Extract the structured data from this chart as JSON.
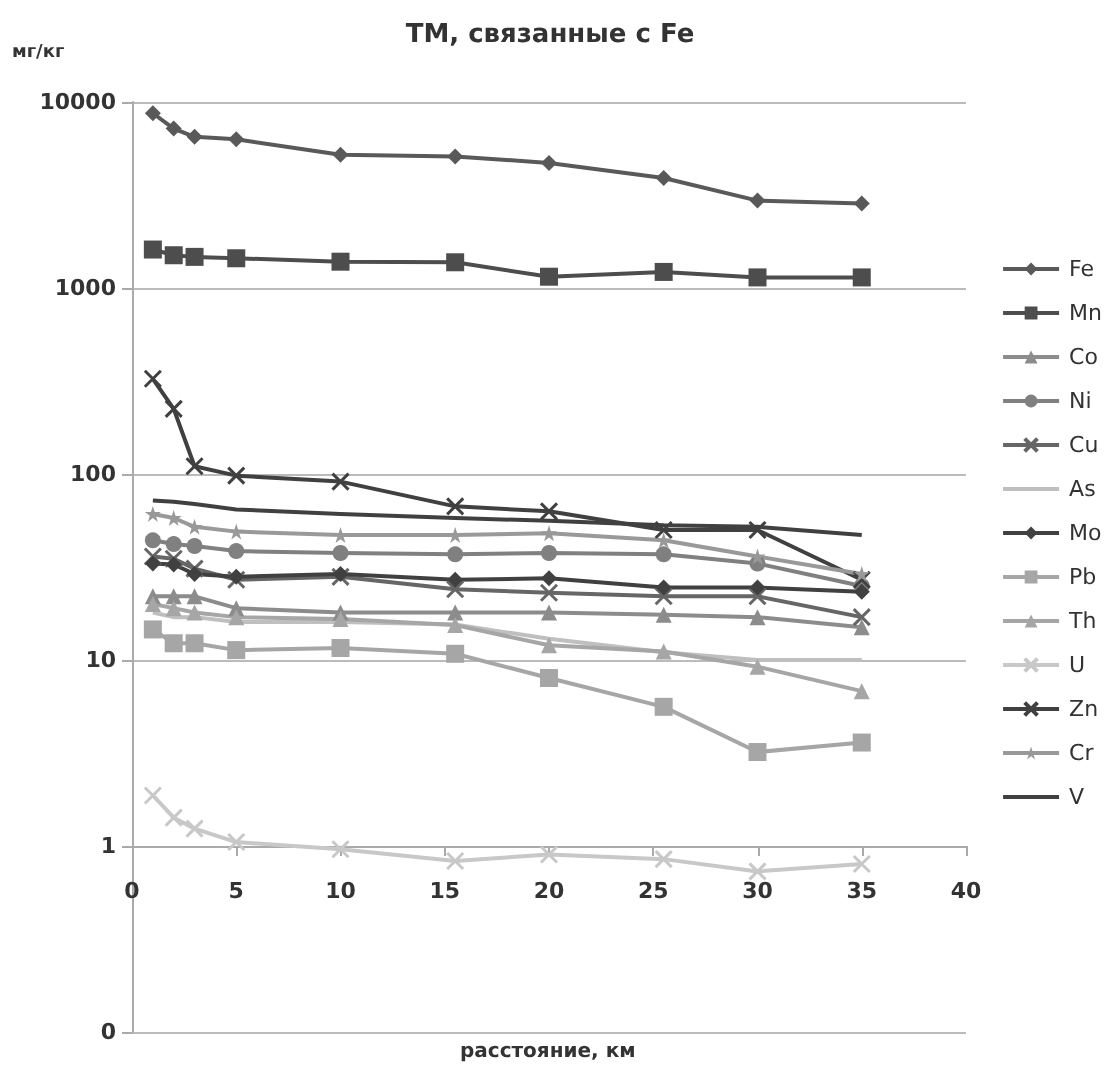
{
  "chart_data": {
    "type": "line",
    "title": "ТМ, связанные с Fe",
    "ylabel": "мг/кг",
    "xlabel": "расстояние, км",
    "x": [
      1,
      2,
      3,
      5,
      10,
      15.5,
      20,
      25.5,
      30,
      35
    ],
    "series": [
      {
        "name": "Fe",
        "color": "#595959",
        "marker": "diamond",
        "values": [
          8700,
          7200,
          6500,
          6300,
          5200,
          5100,
          4700,
          3900,
          2950,
          2850
        ]
      },
      {
        "name": "Mn",
        "color": "#4d4d4d",
        "marker": "square",
        "values": [
          1610,
          1500,
          1470,
          1445,
          1385,
          1375,
          1150,
          1220,
          1140,
          1140
        ]
      },
      {
        "name": "Co",
        "color": "#8c8c8c",
        "marker": "triangle",
        "values": [
          22,
          22,
          22,
          19,
          18,
          18,
          18,
          17.5,
          17,
          15
        ]
      },
      {
        "name": "Ni",
        "color": "#808080",
        "marker": "circle",
        "values": [
          44,
          42,
          41,
          38.5,
          37.6,
          37,
          37.6,
          37,
          33,
          25
        ]
      },
      {
        "name": "Cu",
        "color": "#666666",
        "marker": "cross",
        "values": [
          36,
          35,
          31,
          27,
          28,
          24,
          23,
          22,
          22,
          17
        ]
      },
      {
        "name": "As",
        "color": "#bfbfbf",
        "marker": "none",
        "values": [
          18,
          17,
          17,
          16,
          16,
          15.5,
          13,
          11,
          10,
          10
        ]
      },
      {
        "name": "Mo",
        "color": "#404040",
        "marker": "diamond",
        "values": [
          33,
          32.6,
          29,
          28,
          29,
          27,
          27.5,
          24.5,
          24.5,
          23.3
        ]
      },
      {
        "name": "Pb",
        "color": "#a6a6a6",
        "marker": "square",
        "values": [
          14.6,
          12.3,
          12.3,
          11.3,
          11.6,
          10.8,
          8,
          5.6,
          3.2,
          3.6
        ]
      },
      {
        "name": "Th",
        "color": "#a6a6a6",
        "marker": "triangle",
        "values": [
          20,
          19,
          18,
          17,
          16.6,
          15.4,
          12,
          11.1,
          9.2,
          6.8
        ]
      },
      {
        "name": "U",
        "color": "#c8c8c8",
        "marker": "cross",
        "values": [
          1.87,
          1.42,
          1.24,
          1.05,
          0.96,
          0.83,
          0.9,
          0.85,
          0.73,
          0.8
        ]
      },
      {
        "name": "Zn",
        "color": "#404040",
        "marker": "cross",
        "values": [
          325,
          224,
          110,
          98,
          91,
          67,
          63,
          50,
          50,
          27
        ]
      },
      {
        "name": "Cr",
        "color": "#999999",
        "marker": "star",
        "values": [
          61,
          58,
          52,
          49,
          47,
          47,
          48,
          44,
          36,
          29
        ]
      },
      {
        "name": "V",
        "color": "#404040",
        "marker": "none",
        "values": [
          72,
          71,
          69,
          64.5,
          61,
          58,
          56,
          53,
          52,
          47
        ]
      }
    ],
    "xlim": [
      0,
      40
    ],
    "xticks": [
      0,
      5,
      10,
      15,
      20,
      25,
      30,
      35,
      40
    ],
    "log": "y",
    "ylim": [
      0.1,
      10000
    ],
    "yticks": [
      {
        "value": 0.1,
        "label": "0"
      },
      1,
      10,
      100,
      1000,
      10000
    ],
    "grid": "y",
    "legend": "right"
  }
}
